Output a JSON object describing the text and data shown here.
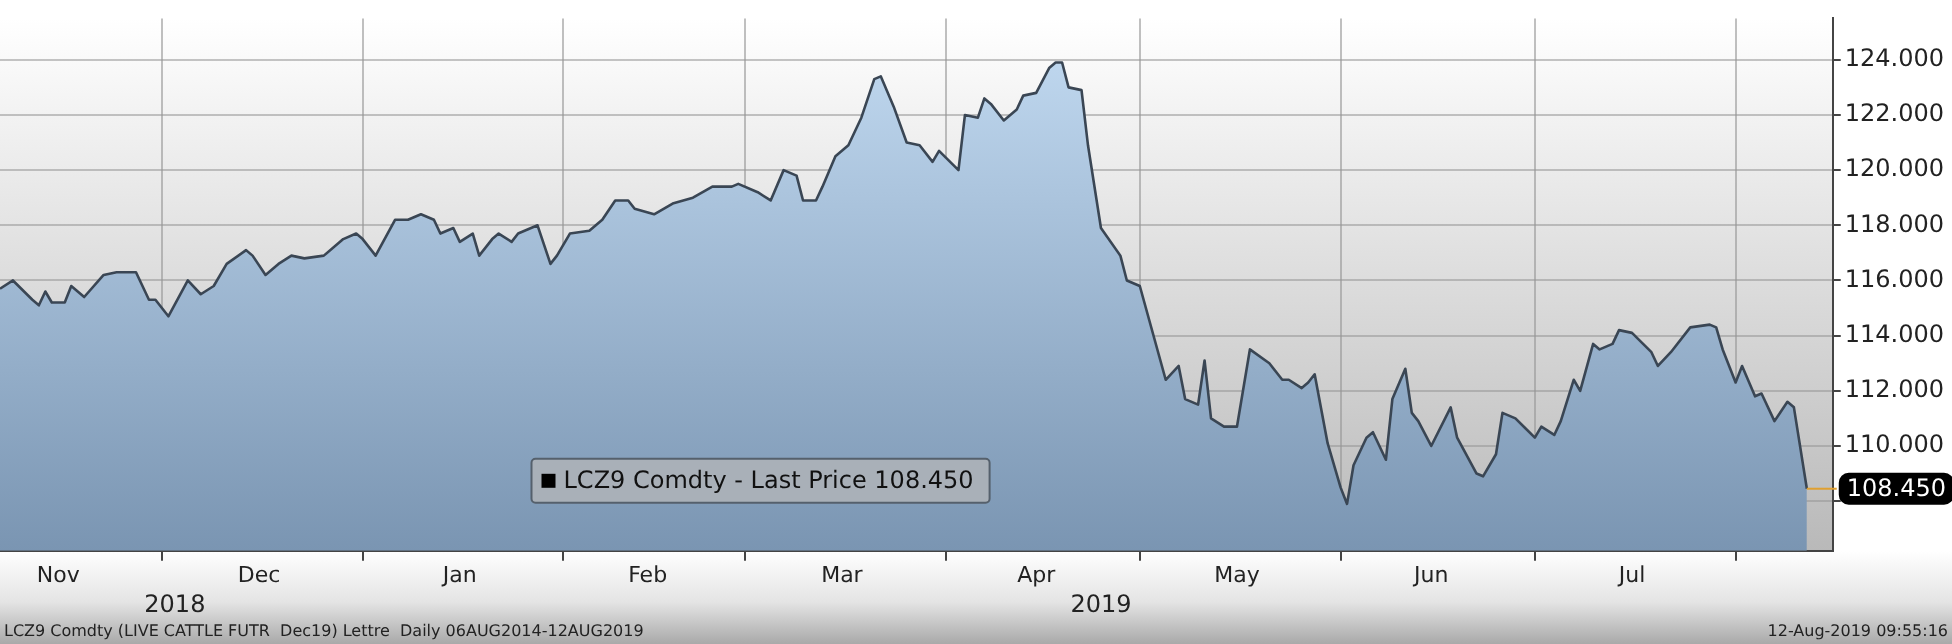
{
  "chart_data": {
    "type": "area",
    "annotations": [
      "LCZ9 Comdty (LIVE CATTLE FUTR  Dec19) Lettre  Daily 06AUG2014-12AUG2019",
      "12-Aug-2019 09:55:16"
    ],
    "x": [
      "2018-11-06",
      "2018-11-08",
      "2018-11-11",
      "2018-11-12",
      "2018-11-13",
      "2018-11-14",
      "2018-11-16",
      "2018-11-17",
      "2018-11-19",
      "2018-11-22",
      "2018-11-24",
      "2018-11-27",
      "2018-11-29",
      "2018-11-30",
      "2018-12-02",
      "2018-12-05",
      "2018-12-07",
      "2018-12-09",
      "2018-12-11",
      "2018-12-14",
      "2018-12-15",
      "2018-12-17",
      "2018-12-19",
      "2018-12-21",
      "2018-12-23",
      "2018-12-26",
      "2018-12-29",
      "2018-12-31",
      "2019-01-01",
      "2019-01-03",
      "2019-01-06",
      "2019-01-08",
      "2019-01-10",
      "2019-01-12",
      "2019-01-13",
      "2019-01-15",
      "2019-01-16",
      "2019-01-18",
      "2019-01-19",
      "2019-01-21",
      "2019-01-22",
      "2019-01-24",
      "2019-01-25",
      "2019-01-28",
      "2019-01-30",
      "2019-01-31",
      "2019-02-02",
      "2019-02-05",
      "2019-02-07",
      "2019-02-09",
      "2019-02-11",
      "2019-02-12",
      "2019-02-15",
      "2019-02-18",
      "2019-02-21",
      "2019-02-24",
      "2019-02-27",
      "2019-02-28",
      "2019-03-03",
      "2019-03-05",
      "2019-03-07",
      "2019-03-09",
      "2019-03-10",
      "2019-03-12",
      "2019-03-13",
      "2019-03-15",
      "2019-03-17",
      "2019-03-19",
      "2019-03-21",
      "2019-03-22",
      "2019-03-24",
      "2019-03-26",
      "2019-03-28",
      "2019-03-30",
      "2019-03-31",
      "2019-04-03",
      "2019-04-04",
      "2019-04-06",
      "2019-04-07",
      "2019-04-08",
      "2019-04-10",
      "2019-04-12",
      "2019-04-13",
      "2019-04-15",
      "2019-04-17",
      "2019-04-18",
      "2019-04-19",
      "2019-04-20",
      "2019-04-22",
      "2019-04-23",
      "2019-04-25",
      "2019-04-28",
      "2019-04-29",
      "2019-05-01",
      "2019-05-05",
      "2019-05-07",
      "2019-05-08",
      "2019-05-10",
      "2019-05-11",
      "2019-05-12",
      "2019-05-14",
      "2019-05-16",
      "2019-05-18",
      "2019-05-21",
      "2019-05-23",
      "2019-05-24",
      "2019-05-26",
      "2019-05-27",
      "2019-05-28",
      "2019-05-30",
      "2019-06-01",
      "2019-06-02",
      "2019-06-03",
      "2019-06-05",
      "2019-06-06",
      "2019-06-08",
      "2019-06-09",
      "2019-06-11",
      "2019-06-12",
      "2019-06-13",
      "2019-06-15",
      "2019-06-18",
      "2019-06-19",
      "2019-06-22",
      "2019-06-23",
      "2019-06-25",
      "2019-06-26",
      "2019-06-28",
      "2019-07-01",
      "2019-07-02",
      "2019-07-04",
      "2019-07-05",
      "2019-07-07",
      "2019-07-08",
      "2019-07-10",
      "2019-07-11",
      "2019-07-13",
      "2019-07-14",
      "2019-07-16",
      "2019-07-19",
      "2019-07-20",
      "2019-07-22",
      "2019-07-25",
      "2019-07-28",
      "2019-07-29",
      "2019-07-30",
      "2019-08-01",
      "2019-08-02",
      "2019-08-04",
      "2019-08-05",
      "2019-08-07",
      "2019-08-09",
      "2019-08-10",
      "2019-08-12"
    ],
    "series": [
      {
        "name": "LCZ9 Comdty - Last Price 108.450",
        "color": "#3a4654",
        "values": [
          115.7,
          116.0,
          115.3,
          115.1,
          115.6,
          115.2,
          115.2,
          115.8,
          115.4,
          116.2,
          116.3,
          116.3,
          115.3,
          115.3,
          114.7,
          116.0,
          115.5,
          115.8,
          116.6,
          117.1,
          116.9,
          116.2,
          116.6,
          116.9,
          116.8,
          116.9,
          117.5,
          117.7,
          117.5,
          116.9,
          118.2,
          118.2,
          118.4,
          118.2,
          117.7,
          117.9,
          117.4,
          117.7,
          116.9,
          117.5,
          117.7,
          117.4,
          117.7,
          118.0,
          116.6,
          116.9,
          117.7,
          117.8,
          118.2,
          118.9,
          118.9,
          118.6,
          118.4,
          118.8,
          119.0,
          119.4,
          119.4,
          119.5,
          119.2,
          118.9,
          120.0,
          119.8,
          118.9,
          118.9,
          119.4,
          120.5,
          120.9,
          121.9,
          123.3,
          123.4,
          122.3,
          121.0,
          120.9,
          120.3,
          120.7,
          120.0,
          122.0,
          121.9,
          122.6,
          122.4,
          121.8,
          122.2,
          122.7,
          122.8,
          123.7,
          123.9,
          123.9,
          123.0,
          122.9,
          120.9,
          117.9,
          116.9,
          116.0,
          115.8,
          112.4,
          112.9,
          111.7,
          111.5,
          113.1,
          111.0,
          110.7,
          110.7,
          113.5,
          113.0,
          112.4,
          112.4,
          112.1,
          112.3,
          112.6,
          110.1,
          108.5,
          107.9,
          109.3,
          110.3,
          110.5,
          109.5,
          111.7,
          112.8,
          111.2,
          110.9,
          110.0,
          111.4,
          110.3,
          109.0,
          108.9,
          109.7,
          111.2,
          111.0,
          110.3,
          110.7,
          110.4,
          110.9,
          112.4,
          112.0,
          113.7,
          113.5,
          113.7,
          114.2,
          114.1,
          113.4,
          112.9,
          113.4,
          114.3,
          114.4,
          114.3,
          113.5,
          112.3,
          112.9,
          111.8,
          111.9,
          110.9,
          111.6,
          111.4,
          108.45
        ],
        "value_labels": [
          null,
          null,
          null,
          null,
          null,
          null,
          null,
          null,
          null,
          null,
          null,
          null,
          null,
          null,
          null,
          null,
          null,
          null,
          null,
          null,
          null,
          null,
          null,
          null,
          null,
          null,
          null,
          null,
          null,
          null,
          null,
          null,
          null,
          null,
          null,
          null,
          null,
          null,
          null,
          null,
          null,
          null,
          null,
          null,
          null,
          null,
          null,
          null,
          null,
          null,
          null,
          null,
          null,
          null,
          null,
          null,
          null,
          null,
          null,
          null,
          null,
          null,
          null,
          null,
          null,
          null,
          null,
          null,
          null,
          null,
          null,
          null,
          null,
          null,
          null,
          null,
          null,
          null,
          null,
          null,
          null,
          null,
          null,
          null,
          null,
          null,
          null,
          null,
          null,
          null,
          null,
          null,
          null,
          null,
          null,
          null,
          null,
          null,
          null,
          null,
          null,
          null,
          null,
          null,
          null,
          null,
          null,
          null,
          null,
          null,
          null,
          null,
          null,
          null,
          null,
          null,
          null,
          null,
          null,
          null,
          null,
          null,
          null,
          null,
          null,
          null,
          null,
          null,
          null,
          null,
          null,
          null,
          null,
          null,
          null,
          null,
          null,
          null,
          null,
          null,
          null,
          null,
          null,
          null,
          null,
          null,
          null,
          null,
          null,
          null,
          null,
          null,
          null,
          "108.450"
        ]
      }
    ],
    "xlim": [
      "2018-11-06",
      "2019-08-16"
    ],
    "xticks": [
      {
        "value": "2018-11-15",
        "label": "Nov"
      },
      {
        "value": "2018-12-01",
        "label": null
      },
      {
        "value": "2018-12-16",
        "label": "Dec"
      },
      {
        "value": "2019-01-01",
        "label": null
      },
      {
        "value": "2019-01-16",
        "label": "Jan"
      },
      {
        "value": "2019-02-01",
        "label": null
      },
      {
        "value": "2019-02-14",
        "label": "Feb"
      },
      {
        "value": "2019-03-01",
        "label": null
      },
      {
        "value": "2019-03-16",
        "label": "Mar"
      },
      {
        "value": "2019-04-01",
        "label": null
      },
      {
        "value": "2019-04-15",
        "label": "Apr"
      },
      {
        "value": "2019-05-01",
        "label": null
      },
      {
        "value": "2019-05-16",
        "label": "May"
      },
      {
        "value": "2019-06-01",
        "label": null
      },
      {
        "value": "2019-06-15",
        "label": "Jun"
      },
      {
        "value": "2019-07-01",
        "label": null
      },
      {
        "value": "2019-07-16",
        "label": "Jul"
      },
      {
        "value": "2019-08-01",
        "label": null
      }
    ],
    "x2lim": [
      "2018-11-06",
      "2019-08-16"
    ],
    "x2ticks": [
      {
        "value": "2018-12-03",
        "label": "2018"
      },
      {
        "value": "2019-04-25",
        "label": "2019"
      }
    ],
    "ylim": [
      106.2,
      125.5
    ],
    "yticks": [
      {
        "value": 108,
        "label": null
      },
      {
        "value": 110,
        "label": "110.000"
      },
      {
        "value": 112,
        "label": "112.000"
      },
      {
        "value": 114,
        "label": "114.000"
      },
      {
        "value": 116,
        "label": "116.000"
      },
      {
        "value": 118,
        "label": "118.000"
      },
      {
        "value": 120,
        "label": "120.000"
      },
      {
        "value": 122,
        "label": "122.000"
      },
      {
        "value": 124,
        "label": "124.000"
      }
    ],
    "grid": true,
    "legend": "bottom",
    "marker": "none",
    "line_style": "solid"
  }
}
